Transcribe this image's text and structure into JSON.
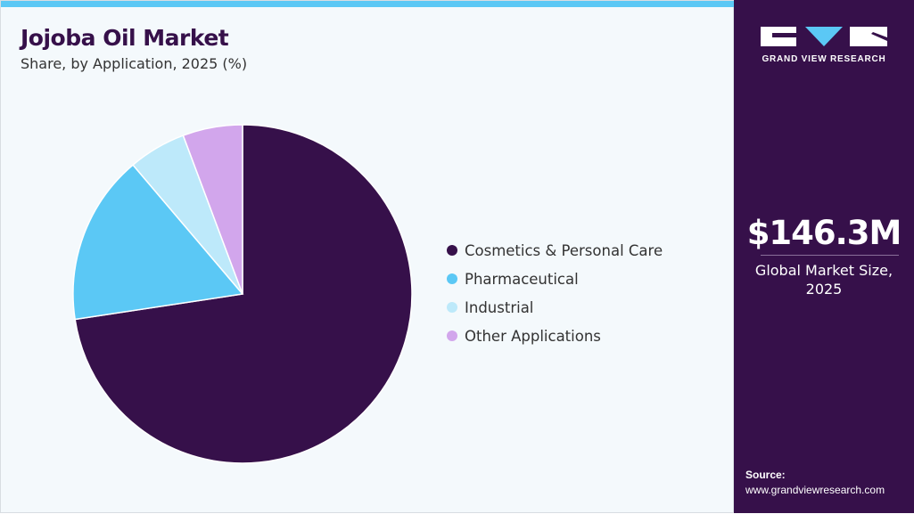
{
  "header": {
    "title": "Jojoba Oil Market",
    "subtitle": "Share, by Application, 2025 (%)"
  },
  "chart_data": {
    "type": "pie",
    "title": "Jojoba Oil Market",
    "subtitle": "Share, by Application, 2025 (%)",
    "categories": [
      "Cosmetics & Personal Care",
      "Pharmaceutical",
      "Industrial",
      "Other Applications"
    ],
    "values": [
      72.6,
      16.2,
      5.5,
      5.7
    ],
    "colors": [
      "#36104a",
      "#5bc8f5",
      "#bde9fa",
      "#d2a6ec"
    ],
    "legend_position": "right"
  },
  "sidebar": {
    "logo_text": "GRAND VIEW RESEARCH",
    "market_size": "$146.3M",
    "market_label": "Global Market Size, 2025",
    "source_label": "Source:",
    "source_url": "www.grandviewresearch.com"
  }
}
